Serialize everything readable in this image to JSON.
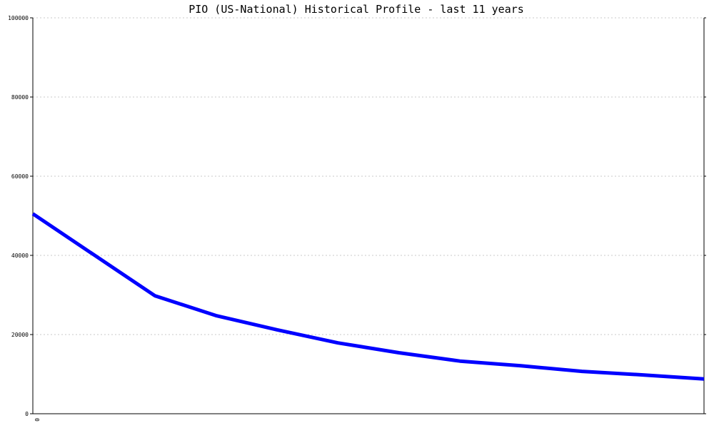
{
  "chart_data": {
    "type": "line",
    "title": "PIO (US-National) Historical Profile - last 11 years",
    "xlabel": "",
    "ylabel": "",
    "x_tick_labels": [
      "0"
    ],
    "y_ticks": [
      0,
      20000,
      40000,
      60000,
      80000,
      100000
    ],
    "ylim": [
      0,
      100000
    ],
    "xlim": [
      0,
      11
    ],
    "grid": true,
    "series": [
      {
        "color": "#0000ff",
        "x": [
          0,
          2,
          3,
          4,
          5,
          6,
          7,
          8,
          9,
          10,
          11
        ],
        "y": [
          50500,
          29800,
          24800,
          21200,
          17900,
          15400,
          13300,
          12100,
          10700,
          9800,
          8800
        ]
      }
    ]
  }
}
